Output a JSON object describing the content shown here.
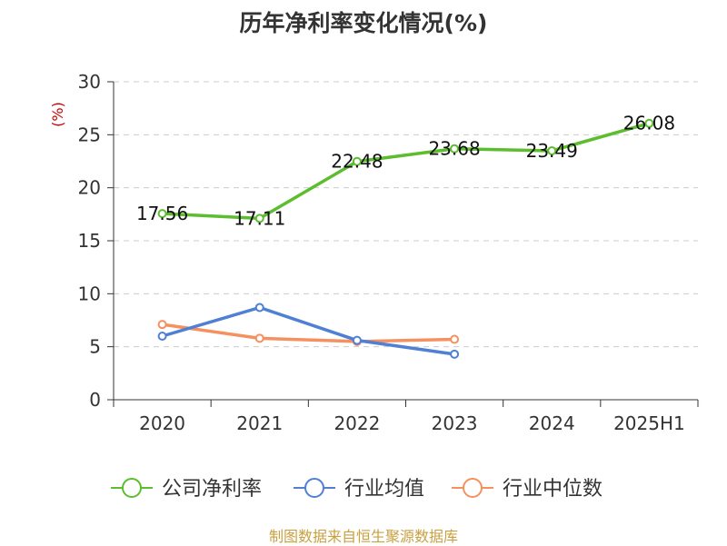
{
  "chart_data": {
    "type": "line",
    "title": "历年净利率变化情况(%)",
    "ylabel": "(%)",
    "categories": [
      "2020",
      "2021",
      "2022",
      "2023",
      "2024",
      "2025H1"
    ],
    "ylim": [
      0,
      30
    ],
    "yticks": [
      0,
      5,
      10,
      15,
      20,
      25,
      30
    ],
    "grid": true,
    "legend_position": "bottom",
    "series": [
      {
        "name": "公司净利率",
        "color": "#5cbd2e",
        "show_labels": true,
        "values": [
          17.56,
          17.11,
          22.48,
          23.68,
          23.49,
          26.08
        ]
      },
      {
        "name": "行业均值",
        "color": "#4f80d4",
        "show_labels": false,
        "values": [
          6.0,
          8.7,
          5.6,
          4.3,
          null,
          null
        ]
      },
      {
        "name": "行业中位数",
        "color": "#f5915f",
        "show_labels": false,
        "values": [
          7.1,
          5.8,
          5.5,
          5.7,
          null,
          null
        ]
      }
    ],
    "data_labels": [
      "17.56",
      "17.11",
      "22.48",
      "23.68",
      "23.49",
      "26.08"
    ]
  },
  "footer": {
    "source": "制图数据来自恒生聚源数据库"
  },
  "colors": {
    "axis": "#333333",
    "grid": "#cccccc",
    "ylabel": "#cc0000",
    "source": "#c8a040"
  }
}
